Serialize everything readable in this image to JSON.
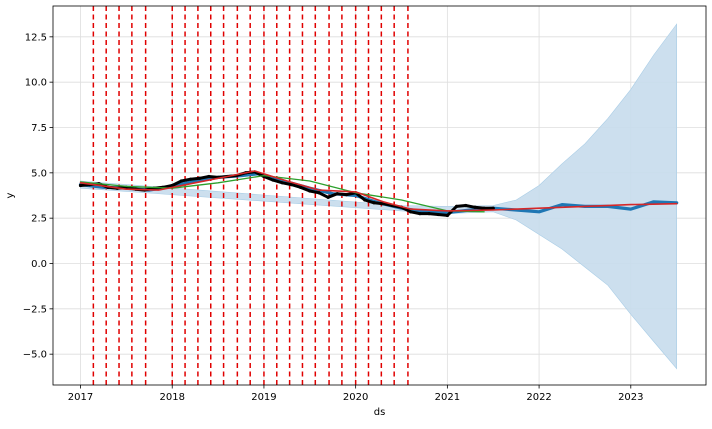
{
  "chart_data": {
    "type": "line",
    "title": "",
    "xlabel": "ds",
    "ylabel": "y",
    "xlim": [
      2016.7,
      2023.82
    ],
    "ylim": [
      -6.7,
      14.2
    ],
    "x_ticks": [
      2017,
      2018,
      2019,
      2020,
      2021,
      2022,
      2023
    ],
    "x_tick_labels": [
      "2017",
      "2018",
      "2019",
      "2020",
      "2021",
      "2022",
      "2023"
    ],
    "y_ticks": [
      -5.0,
      -2.5,
      0.0,
      2.5,
      5.0,
      7.5,
      10.0,
      12.5
    ],
    "y_tick_labels": [
      "−5.0",
      "−2.5",
      "0.0",
      "2.5",
      "5.0",
      "7.5",
      "10.0",
      "12.5"
    ],
    "grid": true,
    "colors": {
      "observed": "#000000",
      "forecast": "#1f77b4",
      "uncertainty": "#c6dcec",
      "trend": "#d62728",
      "changepoint": "#e00000",
      "green_line": "#2ca02c"
    },
    "changepoints": [
      2017.14,
      2017.28,
      2017.42,
      2017.56,
      2017.71,
      2018.0,
      2018.14,
      2018.28,
      2018.42,
      2018.56,
      2018.71,
      2018.85,
      2019.0,
      2019.14,
      2019.28,
      2019.42,
      2019.56,
      2019.71,
      2019.85,
      2020.0,
      2020.14,
      2020.28,
      2020.42,
      2020.57
    ],
    "series": [
      {
        "role": "observed",
        "x": [
          2017.0,
          2017.1,
          2017.2,
          2017.3,
          2017.4,
          2017.5,
          2017.6,
          2017.7,
          2017.8,
          2017.9,
          2018.0,
          2018.1,
          2018.2,
          2018.3,
          2018.4,
          2018.5,
          2018.6,
          2018.7,
          2018.8,
          2018.9,
          2019.0,
          2019.1,
          2019.2,
          2019.3,
          2019.4,
          2019.5,
          2019.6,
          2019.7,
          2019.8,
          2019.9,
          2020.0,
          2020.1,
          2020.2,
          2020.3,
          2020.4,
          2020.5,
          2020.6,
          2020.7,
          2020.8,
          2020.9,
          2021.0,
          2021.1,
          2021.2,
          2021.3,
          2021.4,
          2021.5
        ],
        "y": [
          4.3,
          4.35,
          4.4,
          4.2,
          4.15,
          4.2,
          4.1,
          4.05,
          4.15,
          4.2,
          4.3,
          4.55,
          4.65,
          4.7,
          4.8,
          4.75,
          4.8,
          4.85,
          5.0,
          5.05,
          4.8,
          4.6,
          4.45,
          4.35,
          4.2,
          4.0,
          3.9,
          3.65,
          3.85,
          3.8,
          3.9,
          3.5,
          3.35,
          3.3,
          3.2,
          3.1,
          2.85,
          2.75,
          2.75,
          2.7,
          2.65,
          3.15,
          3.2,
          3.1,
          3.05,
          3.05
        ]
      },
      {
        "role": "forecast",
        "x": [
          2017.0,
          2017.25,
          2017.5,
          2017.75,
          2018.0,
          2018.25,
          2018.5,
          2018.75,
          2018.95,
          2019.25,
          2019.5,
          2019.75,
          2020.0,
          2020.25,
          2020.5,
          2020.75,
          2021.0,
          2021.25,
          2021.5,
          2021.75,
          2022.0,
          2022.25,
          2022.5,
          2022.75,
          2023.0,
          2023.25,
          2023.5
        ],
        "y": [
          4.35,
          4.2,
          4.15,
          4.05,
          4.25,
          4.55,
          4.75,
          4.85,
          4.95,
          4.5,
          4.15,
          3.85,
          3.75,
          3.35,
          3.05,
          2.85,
          2.8,
          2.95,
          3.05,
          2.95,
          2.85,
          3.25,
          3.15,
          3.15,
          3.0,
          3.4,
          3.35
        ]
      },
      {
        "role": "uncertainty_upper",
        "x": [
          2017.0,
          2020.5,
          2021.0,
          2021.5,
          2021.75,
          2022.0,
          2022.25,
          2022.5,
          2022.75,
          2023.0,
          2023.25,
          2023.5
        ],
        "y": [
          4.55,
          3.2,
          3.15,
          3.2,
          3.5,
          4.3,
          5.5,
          6.6,
          8.0,
          9.6,
          11.5,
          13.2
        ]
      },
      {
        "role": "uncertainty_lower",
        "x": [
          2017.0,
          2020.5,
          2021.0,
          2021.5,
          2021.75,
          2022.0,
          2022.25,
          2022.5,
          2022.75,
          2023.0,
          2023.25,
          2023.5
        ],
        "y": [
          4.15,
          2.9,
          2.75,
          2.85,
          2.4,
          1.6,
          0.8,
          -0.2,
          -1.2,
          -2.8,
          -4.3,
          -5.8
        ]
      },
      {
        "role": "trend",
        "x": [
          2017.0,
          2017.5,
          2017.85,
          2018.25,
          2018.6,
          2018.9,
          2019.25,
          2019.6,
          2020.0,
          2020.3,
          2020.6,
          2021.0,
          2021.5,
          2022.0,
          2022.5,
          2023.0,
          2023.5
        ],
        "y": [
          4.45,
          4.1,
          4.05,
          4.45,
          4.8,
          5.1,
          4.55,
          4.05,
          3.95,
          3.4,
          3.0,
          2.9,
          2.95,
          3.05,
          3.15,
          3.25,
          3.3
        ]
      },
      {
        "role": "green_line",
        "x": [
          2017.0,
          2017.5,
          2018.0,
          2018.5,
          2019.0,
          2019.5,
          2020.0,
          2020.5,
          2021.0,
          2021.4
        ],
        "y": [
          4.5,
          4.25,
          4.15,
          4.45,
          4.85,
          4.55,
          3.9,
          3.5,
          2.9,
          2.85
        ]
      }
    ]
  }
}
